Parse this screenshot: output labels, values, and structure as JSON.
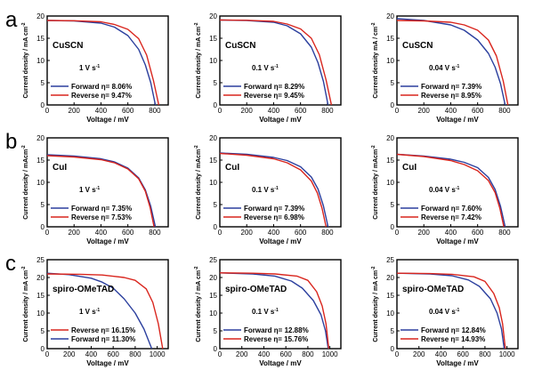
{
  "panel_letters": [
    "a",
    "b",
    "c"
  ],
  "colors": {
    "forward": "#2b3f9e",
    "reverse": "#d9251d",
    "axis": "#000000"
  },
  "chart_data": [
    {
      "type": "line",
      "row": 0,
      "col": 0,
      "material": "CuSCN",
      "rate": "1 V s",
      "rate_exp": "-1",
      "ylabel": "Current density / mA cm",
      "ylabel_exp": "-2",
      "xlabel": "Voltage / mV",
      "xlim": [
        0,
        900
      ],
      "ylim": [
        0,
        20
      ],
      "xticks": [
        0,
        200,
        400,
        600,
        800
      ],
      "yticks": [
        0,
        5,
        10,
        15,
        20
      ],
      "legend_order": [
        "forward",
        "reverse"
      ],
      "series": [
        {
          "name": "Forward",
          "key": "forward",
          "label": "Forward η= 8.06%",
          "points": [
            [
              0,
              19.0
            ],
            [
              200,
              18.9
            ],
            [
              400,
              18.4
            ],
            [
              500,
              17.5
            ],
            [
              600,
              15.6
            ],
            [
              680,
              12.5
            ],
            [
              730,
              9.0
            ],
            [
              770,
              5.0
            ],
            [
              805,
              0
            ]
          ]
        },
        {
          "name": "Reverse",
          "key": "reverse",
          "label": "Reverse η= 9.47%",
          "points": [
            [
              0,
              19.0
            ],
            [
              200,
              18.95
            ],
            [
              400,
              18.7
            ],
            [
              500,
              18.1
            ],
            [
              600,
              17.0
            ],
            [
              680,
              14.9
            ],
            [
              740,
              11.2
            ],
            [
              790,
              5.5
            ],
            [
              830,
              0
            ]
          ]
        }
      ]
    },
    {
      "type": "line",
      "row": 0,
      "col": 1,
      "material": "CuSCN",
      "rate": "0.1 V s",
      "rate_exp": "-1",
      "ylabel": "Current density / mA cm",
      "ylabel_exp": "-2",
      "xlabel": "Voltage / mV",
      "xlim": [
        0,
        900
      ],
      "ylim": [
        0,
        20
      ],
      "xticks": [
        0,
        200,
        400,
        600,
        800
      ],
      "yticks": [
        0,
        5,
        10,
        15,
        20
      ],
      "legend_order": [
        "forward",
        "reverse"
      ],
      "series": [
        {
          "name": "Forward",
          "key": "forward",
          "label": "Forward η= 8.29%",
          "points": [
            [
              0,
              19.1
            ],
            [
              200,
              19.0
            ],
            [
              400,
              18.6
            ],
            [
              500,
              17.8
            ],
            [
              600,
              16.0
            ],
            [
              680,
              13.0
            ],
            [
              730,
              9.5
            ],
            [
              770,
              5.3
            ],
            [
              805,
              0
            ]
          ]
        },
        {
          "name": "Reverse",
          "key": "reverse",
          "label": "Reverse η= 9.45%",
          "points": [
            [
              0,
              19.1
            ],
            [
              200,
              19.05
            ],
            [
              400,
              18.8
            ],
            [
              500,
              18.2
            ],
            [
              600,
              17.1
            ],
            [
              680,
              15.0
            ],
            [
              740,
              11.3
            ],
            [
              790,
              5.6
            ],
            [
              830,
              0
            ]
          ]
        }
      ]
    },
    {
      "type": "line",
      "row": 0,
      "col": 2,
      "material": "CuSCN",
      "rate": "0.04 V s",
      "rate_exp": "-1",
      "ylabel": "Current density mA / cm",
      "ylabel_exp": "-2",
      "xlabel": "Voltage / mV",
      "xlim": [
        0,
        900
      ],
      "ylim": [
        0,
        20
      ],
      "xticks": [
        0,
        200,
        400,
        600,
        800
      ],
      "yticks": [
        0,
        5,
        10,
        15,
        20
      ],
      "legend_order": [
        "forward",
        "reverse"
      ],
      "series": [
        {
          "name": "Forward",
          "key": "forward",
          "label": "Forward η= 7.39%",
          "points": [
            [
              0,
              19.4
            ],
            [
              200,
              19.0
            ],
            [
              400,
              18.0
            ],
            [
              500,
              16.8
            ],
            [
              600,
              14.6
            ],
            [
              680,
              11.6
            ],
            [
              730,
              8.5
            ],
            [
              770,
              4.8
            ],
            [
              805,
              0
            ]
          ]
        },
        {
          "name": "Reverse",
          "key": "reverse",
          "label": "Reverse η= 8.95%",
          "points": [
            [
              0,
              19.0
            ],
            [
              200,
              18.9
            ],
            [
              400,
              18.6
            ],
            [
              500,
              18.0
            ],
            [
              600,
              16.8
            ],
            [
              680,
              14.6
            ],
            [
              740,
              11.0
            ],
            [
              790,
              5.4
            ],
            [
              825,
              0
            ]
          ]
        }
      ]
    },
    {
      "type": "line",
      "row": 1,
      "col": 0,
      "material": "CuI",
      "rate": "1 V s",
      "rate_exp": "-1",
      "ylabel": "Current density / mAcm",
      "ylabel_exp": "-2",
      "xlabel": "Voltage / mV",
      "xlim": [
        0,
        900
      ],
      "ylim": [
        0,
        20
      ],
      "xticks": [
        0,
        200,
        400,
        600,
        800
      ],
      "yticks": [
        0,
        5,
        10,
        15,
        20
      ],
      "legend_order": [
        "forward",
        "reverse"
      ],
      "series": [
        {
          "name": "Forward",
          "key": "forward",
          "label": "Forward η= 7.35%",
          "points": [
            [
              0,
              16.2
            ],
            [
              200,
              15.9
            ],
            [
              400,
              15.3
            ],
            [
              500,
              14.6
            ],
            [
              600,
              13.2
            ],
            [
              680,
              11.0
            ],
            [
              730,
              8.3
            ],
            [
              770,
              4.6
            ],
            [
              805,
              0
            ]
          ]
        },
        {
          "name": "Reverse",
          "key": "reverse",
          "label": "Reverse η= 7.53%",
          "points": [
            [
              0,
              16.0
            ],
            [
              200,
              15.7
            ],
            [
              400,
              15.1
            ],
            [
              500,
              14.4
            ],
            [
              600,
              13.0
            ],
            [
              680,
              10.8
            ],
            [
              730,
              8.0
            ],
            [
              765,
              4.4
            ],
            [
              795,
              0
            ]
          ]
        }
      ]
    },
    {
      "type": "line",
      "row": 1,
      "col": 1,
      "material": "CuI",
      "rate": "0.1 V s",
      "rate_exp": "-1",
      "ylabel": "Current density / mAcm",
      "ylabel_exp": "-2",
      "xlabel": "Voltage / mV",
      "xlim": [
        0,
        900
      ],
      "ylim": [
        0,
        20
      ],
      "xticks": [
        0,
        200,
        400,
        600,
        800
      ],
      "yticks": [
        0,
        5,
        10,
        15,
        20
      ],
      "legend_order": [
        "forward",
        "reverse"
      ],
      "series": [
        {
          "name": "Forward",
          "key": "forward",
          "label": "Forward η= 7.39%",
          "points": [
            [
              0,
              16.6
            ],
            [
              200,
              16.3
            ],
            [
              400,
              15.6
            ],
            [
              500,
              14.9
            ],
            [
              600,
              13.5
            ],
            [
              680,
              11.2
            ],
            [
              730,
              8.5
            ],
            [
              770,
              4.7
            ],
            [
              805,
              0
            ]
          ]
        },
        {
          "name": "Reverse",
          "key": "reverse",
          "label": "Reverse η= 6.98%",
          "points": [
            [
              0,
              16.5
            ],
            [
              200,
              16.1
            ],
            [
              400,
              15.3
            ],
            [
              500,
              14.4
            ],
            [
              600,
              12.8
            ],
            [
              680,
              10.3
            ],
            [
              725,
              7.6
            ],
            [
              760,
              4.2
            ],
            [
              790,
              0
            ]
          ]
        }
      ]
    },
    {
      "type": "line",
      "row": 1,
      "col": 2,
      "material": "CuI",
      "rate": "0.04 V s",
      "rate_exp": "-1",
      "ylabel": "Current density / mAcm",
      "ylabel_exp": "-2",
      "xlabel": "Voltage / mV",
      "xlim": [
        0,
        900
      ],
      "ylim": [
        0,
        20
      ],
      "xticks": [
        0,
        200,
        400,
        600,
        800
      ],
      "yticks": [
        0,
        5,
        10,
        15,
        20
      ],
      "legend_order": [
        "forward",
        "reverse"
      ],
      "series": [
        {
          "name": "Forward",
          "key": "forward",
          "label": "Forward η= 7.60%",
          "points": [
            [
              0,
              16.3
            ],
            [
              200,
              15.9
            ],
            [
              400,
              15.2
            ],
            [
              500,
              14.5
            ],
            [
              600,
              13.3
            ],
            [
              680,
              11.1
            ],
            [
              730,
              8.4
            ],
            [
              770,
              4.6
            ],
            [
              805,
              0
            ]
          ]
        },
        {
          "name": "Reverse",
          "key": "reverse",
          "label": "Reverse η= 7.42%",
          "points": [
            [
              0,
              16.3
            ],
            [
              200,
              15.8
            ],
            [
              400,
              14.9
            ],
            [
              500,
              14.0
            ],
            [
              600,
              12.6
            ],
            [
              680,
              10.4
            ],
            [
              730,
              7.7
            ],
            [
              765,
              4.2
            ],
            [
              795,
              0
            ]
          ]
        }
      ]
    },
    {
      "type": "line",
      "row": 2,
      "col": 0,
      "material": "spiro-OMeTAD",
      "rate": "1 V s",
      "rate_exp": "-1",
      "ylabel": "Current density / mA cm",
      "ylabel_exp": "-2",
      "xlabel": "Voltage / mV",
      "xlim": [
        0,
        1100
      ],
      "ylim": [
        0,
        25
      ],
      "xticks": [
        0,
        200,
        400,
        600,
        800,
        1000
      ],
      "yticks": [
        0,
        5,
        10,
        15,
        20,
        25
      ],
      "legend_order": [
        "reverse",
        "forward"
      ],
      "series": [
        {
          "name": "Forward",
          "key": "forward",
          "label": "Forward η= 11.30%",
          "points": [
            [
              0,
              21.2
            ],
            [
              200,
              20.8
            ],
            [
              400,
              19.8
            ],
            [
              500,
              18.7
            ],
            [
              600,
              17.0
            ],
            [
              700,
              14.0
            ],
            [
              800,
              10.0
            ],
            [
              880,
              5.5
            ],
            [
              950,
              0
            ]
          ]
        },
        {
          "name": "Reverse",
          "key": "reverse",
          "label": "Reverse η= 16.15%",
          "points": [
            [
              0,
              21.0
            ],
            [
              300,
              20.9
            ],
            [
              500,
              20.7
            ],
            [
              700,
              20.0
            ],
            [
              800,
              19.2
            ],
            [
              900,
              16.8
            ],
            [
              960,
              13.0
            ],
            [
              1010,
              7.0
            ],
            [
              1050,
              0
            ]
          ]
        }
      ]
    },
    {
      "type": "line",
      "row": 2,
      "col": 1,
      "material": "spiro-OMeTAD",
      "rate": "0.1 V s",
      "rate_exp": "-1",
      "ylabel": "Current density / mA cm",
      "ylabel_exp": "-2",
      "xlabel": "Voltage / mV",
      "xlim": [
        0,
        1100
      ],
      "ylim": [
        0,
        25
      ],
      "xticks": [
        0,
        200,
        400,
        600,
        800,
        1000
      ],
      "yticks": [
        0,
        5,
        10,
        15,
        20,
        25
      ],
      "legend_order": [
        "forward",
        "reverse"
      ],
      "series": [
        {
          "name": "Forward",
          "key": "forward",
          "label": "Forward η= 12.88%",
          "points": [
            [
              0,
              21.3
            ],
            [
              300,
              21.0
            ],
            [
              500,
              20.4
            ],
            [
              650,
              19.0
            ],
            [
              750,
              17.0
            ],
            [
              850,
              13.5
            ],
            [
              920,
              9.5
            ],
            [
              960,
              5.0
            ],
            [
              985,
              0
            ]
          ]
        },
        {
          "name": "Reverse",
          "key": "reverse",
          "label": "Reverse η= 15.76%",
          "points": [
            [
              0,
              21.3
            ],
            [
              300,
              21.2
            ],
            [
              500,
              21.0
            ],
            [
              700,
              20.4
            ],
            [
              800,
              19.2
            ],
            [
              880,
              16.0
            ],
            [
              930,
              12.0
            ],
            [
              965,
              7.0
            ],
            [
              990,
              0
            ]
          ]
        }
      ]
    },
    {
      "type": "line",
      "row": 2,
      "col": 2,
      "material": "spiro-OMeTAD",
      "rate": "0.04 V s",
      "rate_exp": "-1",
      "ylabel": "Current density / mA cm",
      "ylabel_exp": "-2",
      "xlabel": "Voltage / mV",
      "xlim": [
        0,
        1100
      ],
      "ylim": [
        0,
        25
      ],
      "xticks": [
        0,
        200,
        400,
        600,
        800,
        1000
      ],
      "yticks": [
        0,
        5,
        10,
        15,
        20,
        25
      ],
      "legend_order": [
        "forward",
        "reverse"
      ],
      "series": [
        {
          "name": "Forward",
          "key": "forward",
          "label": "Forward η= 12.84%",
          "points": [
            [
              0,
              21.2
            ],
            [
              300,
              21.0
            ],
            [
              500,
              20.5
            ],
            [
              650,
              19.3
            ],
            [
              750,
              17.5
            ],
            [
              850,
              14.0
            ],
            [
              910,
              10.0
            ],
            [
              950,
              5.5
            ],
            [
              975,
              0
            ]
          ]
        },
        {
          "name": "Reverse",
          "key": "reverse",
          "label": "Reverse η= 14.93%",
          "points": [
            [
              0,
              21.2
            ],
            [
              300,
              21.1
            ],
            [
              500,
              20.9
            ],
            [
              700,
              20.2
            ],
            [
              800,
              18.9
            ],
            [
              880,
              15.5
            ],
            [
              930,
              11.5
            ],
            [
              960,
              7.0
            ],
            [
              985,
              0
            ]
          ]
        }
      ]
    }
  ]
}
